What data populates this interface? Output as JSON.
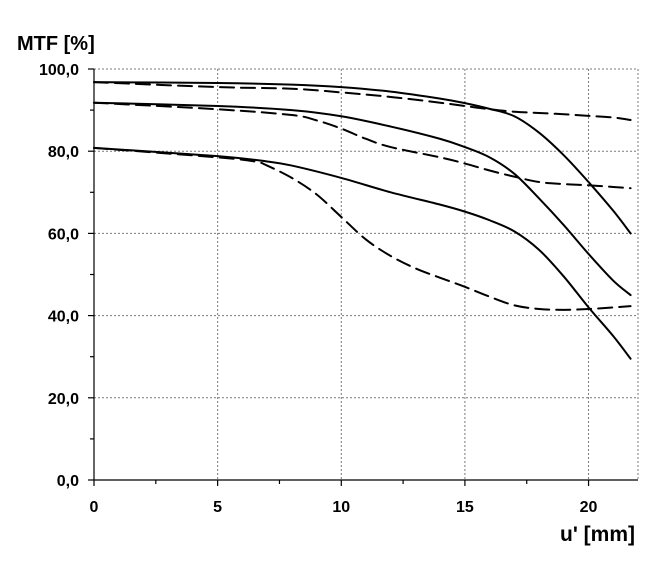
{
  "chart_data": {
    "type": "line",
    "title": "",
    "ylabel": "MTF [%]",
    "xlabel": "u' [mm]",
    "xlim": [
      0,
      22
    ],
    "ylim": [
      0,
      100
    ],
    "x_ticks": [
      0,
      5,
      10,
      15,
      20
    ],
    "x_tick_labels": [
      "0",
      "5",
      "10",
      "15",
      "20"
    ],
    "y_ticks": [
      0,
      20,
      40,
      60,
      80,
      100
    ],
    "y_tick_labels": [
      "0,0",
      "20,0",
      "40,0",
      "60,0",
      "80,0",
      "100,0"
    ],
    "grid": true,
    "legend": "none",
    "series": [
      {
        "style": "solid",
        "x": [
          0,
          5,
          8,
          10,
          12,
          14,
          15,
          16,
          17,
          18,
          19,
          20,
          21,
          21.7
        ],
        "y": [
          96.8,
          96.6,
          96.2,
          95.6,
          94.5,
          92.8,
          91.7,
          90.3,
          88.5,
          84.5,
          79,
          72.5,
          65.5,
          60
        ]
      },
      {
        "style": "dashed",
        "x": [
          0,
          5,
          8,
          10,
          12,
          14,
          15,
          16,
          17,
          18,
          19,
          20,
          21,
          21.7
        ],
        "y": [
          96.8,
          95.6,
          95.2,
          94.3,
          93.2,
          91.8,
          91,
          90.2,
          89.6,
          89.3,
          89,
          88.6,
          88.2,
          87.6
        ]
      },
      {
        "style": "solid",
        "x": [
          0,
          5,
          8,
          10,
          12,
          14,
          15,
          16,
          17,
          18,
          19,
          20,
          21,
          21.7
        ],
        "y": [
          91.8,
          91,
          90,
          88.5,
          86,
          83,
          81,
          78.5,
          74.5,
          68.5,
          62,
          55,
          48.5,
          45
        ]
      },
      {
        "style": "dashed",
        "x": [
          0,
          5,
          8,
          9,
          10,
          11,
          12,
          14,
          15,
          16,
          17,
          18,
          19,
          20,
          21,
          21.7
        ],
        "y": [
          91.8,
          90.2,
          88.8,
          87.5,
          85.5,
          83,
          81,
          78.5,
          77,
          75.3,
          73.8,
          72.5,
          72,
          71.7,
          71.3,
          71
        ]
      },
      {
        "style": "solid",
        "x": [
          0,
          5,
          7,
          8,
          10,
          12,
          14,
          15,
          16,
          17,
          18,
          19,
          20,
          21,
          21.7
        ],
        "y": [
          80.8,
          78.8,
          77.5,
          76.5,
          73.5,
          70,
          67,
          65.3,
          63.2,
          60.5,
          56,
          49.5,
          42,
          35,
          29.5
        ]
      },
      {
        "style": "dashed",
        "x": [
          0,
          5,
          6.5,
          7,
          8,
          9,
          10,
          11,
          12,
          13,
          14,
          15,
          16,
          17,
          18,
          19,
          20,
          21,
          21.7
        ],
        "y": [
          80.8,
          78.5,
          77.5,
          76.5,
          73.5,
          69.5,
          64,
          58.5,
          54.5,
          51.5,
          49.2,
          47,
          44.6,
          42.5,
          41.6,
          41.4,
          41.6,
          42,
          42.3
        ]
      }
    ]
  }
}
